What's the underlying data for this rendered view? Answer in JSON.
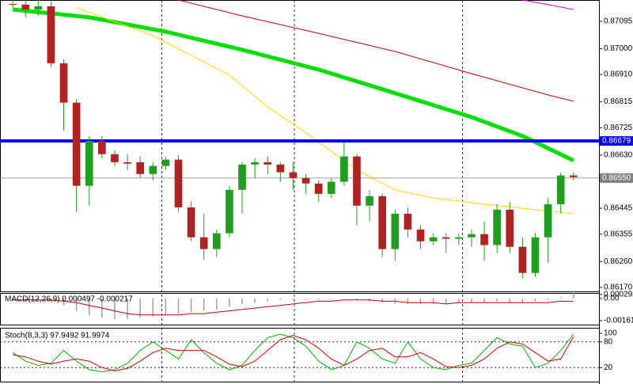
{
  "chart_data": [
    {
      "type": "candlestick",
      "xlim": [
        -1,
        46
      ],
      "xticks": [
        11.7,
        22.1,
        35.3
      ],
      "ylim": [
        0.86156,
        0.87169
      ],
      "yticks": [
        {
          "value": 0.87095,
          "label": "0.87095"
        },
        {
          "value": 0.87,
          "label": "0.87000"
        },
        {
          "value": 0.8691,
          "label": "0.86910"
        },
        {
          "value": 0.86815,
          "label": "0.86815"
        },
        {
          "value": 0.86725,
          "label": "0.86725"
        },
        {
          "value": 0.8663,
          "label": "0.86630"
        },
        {
          "value": 0.86445,
          "label": "0.86445"
        },
        {
          "value": 0.86355,
          "label": "0.86355"
        },
        {
          "value": 0.8626,
          "label": "0.86260"
        },
        {
          "value": 0.8617,
          "label": "0.86170"
        }
      ],
      "levels": [
        {
          "value": 0.86679,
          "label": "0.86679",
          "color": "#0000ff"
        },
        {
          "value": 0.8655,
          "label": "0.86550",
          "color": "#808080"
        }
      ],
      "up_color": "#1f9e1f",
      "down_color": "#b22222",
      "open": [
        0.87155,
        0.87153,
        0.87136,
        0.87147,
        0.86949,
        0.86812,
        0.86523,
        0.86679,
        0.86633,
        0.86605,
        0.86605,
        0.86564,
        0.86592,
        0.86614,
        0.86448,
        0.86344,
        0.86303,
        0.86358,
        0.86509,
        0.86597,
        0.86605,
        0.86597,
        0.8657,
        0.8655,
        0.86531,
        0.86495,
        0.86537,
        0.86625,
        0.86454,
        0.86487,
        0.86303,
        0.86426,
        0.86371,
        0.8633,
        0.86344,
        0.86339,
        0.86344,
        0.86355,
        0.86317,
        0.8644,
        0.86311,
        0.8622,
        0.86344,
        0.86459,
        0.86559
      ],
      "high": [
        0.87169,
        0.87169,
        0.87169,
        0.87164,
        0.86963,
        0.86825,
        0.86696,
        0.86696,
        0.86647,
        0.86633,
        0.86625,
        0.86605,
        0.86625,
        0.8663,
        0.86468,
        0.86426,
        0.86371,
        0.86523,
        0.86605,
        0.86619,
        0.86625,
        0.86605,
        0.86605,
        0.86564,
        0.86542,
        0.8655,
        0.86674,
        0.86633,
        0.86509,
        0.86495,
        0.8644,
        0.86448,
        0.86385,
        0.86358,
        0.86358,
        0.86358,
        0.86371,
        0.86399,
        0.86459,
        0.86468,
        0.86344,
        0.86358,
        0.86481,
        0.8657,
        0.8657
      ],
      "low": [
        0.87142,
        0.87109,
        0.87114,
        0.86935,
        0.86715,
        0.86432,
        0.86454,
        0.86619,
        0.86592,
        0.86578,
        0.8655,
        0.86542,
        0.86578,
        0.86432,
        0.8633,
        0.86267,
        0.86275,
        0.86344,
        0.86426,
        0.8655,
        0.86564,
        0.86537,
        0.86509,
        0.86495,
        0.86468,
        0.86481,
        0.86523,
        0.86385,
        0.86399,
        0.86275,
        0.86262,
        0.86344,
        0.86303,
        0.86317,
        0.86289,
        0.86317,
        0.86311,
        0.86262,
        0.86289,
        0.86289,
        0.86201,
        0.86207,
        0.86256,
        0.86426,
        0.86542
      ],
      "close": [
        0.87153,
        0.87136,
        0.87147,
        0.86949,
        0.86812,
        0.86523,
        0.86679,
        0.86633,
        0.86605,
        0.866,
        0.86564,
        0.86592,
        0.86614,
        0.86448,
        0.86344,
        0.86303,
        0.86358,
        0.86509,
        0.86597,
        0.86605,
        0.86597,
        0.8657,
        0.8655,
        0.86531,
        0.86495,
        0.86537,
        0.86625,
        0.86454,
        0.86487,
        0.86303,
        0.86426,
        0.86371,
        0.8633,
        0.86344,
        0.86339,
        0.86344,
        0.86355,
        0.86317,
        0.8644,
        0.86311,
        0.8622,
        0.86344,
        0.86459,
        0.86559,
        0.86553
      ],
      "series": [
        {
          "color": "#00e000",
          "width": 5,
          "x": [
            0,
            6,
            12,
            18,
            24,
            30,
            36,
            40,
            44
          ],
          "values": [
            0.87136,
            0.87109,
            0.87059,
            0.86996,
            0.86927,
            0.86845,
            0.86762,
            0.86696,
            0.86611
          ]
        },
        {
          "color": "#c00000",
          "width": 1,
          "x": [
            13,
            18,
            24,
            30,
            36,
            42,
            44
          ],
          "values": [
            0.87169,
            0.87114,
            0.87053,
            0.8699,
            0.86913,
            0.86839,
            0.86817
          ]
        },
        {
          "color": "#ffd700",
          "width": 1,
          "x": [
            5,
            11,
            17,
            20,
            23,
            27,
            30,
            33,
            37,
            41,
            44
          ],
          "values": [
            0.87142,
            0.87045,
            0.86908,
            0.86798,
            0.86707,
            0.86578,
            0.86509,
            0.86481,
            0.86459,
            0.8644,
            0.86426
          ]
        },
        {
          "color": "#d000d0",
          "width": 1,
          "x": [
            40,
            42,
            44
          ],
          "values": [
            0.87169,
            0.87153,
            0.87136
          ]
        }
      ]
    },
    {
      "type": "macd",
      "title": "MACD(12,26,9) 0.000497 -0.000217",
      "ylim": [
        -0.0019,
        0.0004
      ],
      "yticks": [
        {
          "value": 0.000293,
          "label": "0.000293"
        },
        {
          "value": 0,
          "label": "0.00"
        },
        {
          "value": -0.001611,
          "label": "-0.001611"
        }
      ],
      "histogram_color": "#a0a0a0",
      "signal_color": "#c00000",
      "values": [
        -0.0001,
        -0.0001,
        -5e-05,
        -0.0002,
        -0.0005,
        -0.0009,
        -0.0012,
        -0.0014,
        -0.0015,
        -0.0015,
        -0.0014,
        -0.0013,
        -0.0012,
        -0.0011,
        -0.001,
        -0.0009,
        -0.0008,
        -0.0006,
        -0.0004,
        -0.0003,
        -0.0002,
        -0.0001,
        -0.0001,
        -0.0001,
        -0.0001,
        -5e-05,
        0,
        -0.0001,
        -0.0002,
        -0.0003,
        -0.0004,
        -0.0004,
        -0.0004,
        -0.0004,
        -0.0004,
        -0.0003,
        -0.0003,
        -0.0003,
        -0.0002,
        -0.0003,
        -0.0003,
        -0.0002,
        -0.0001,
        0.0001,
        0.000497
      ],
      "signal": [
        -0.0001,
        -0.0001,
        -0.0001,
        -0.0001,
        -0.0002,
        -0.0003,
        -0.0005,
        -0.0007,
        -0.0009,
        -0.0011,
        -0.0012,
        -0.0012,
        -0.0012,
        -0.0012,
        -0.0011,
        -0.0011,
        -0.001,
        -0.0009,
        -0.0008,
        -0.0007,
        -0.0006,
        -0.0005,
        -0.0004,
        -0.0003,
        -0.0002,
        -0.0002,
        -0.0001,
        -0.0001,
        -0.0001,
        -0.0002,
        -0.0002,
        -0.0003,
        -0.0003,
        -0.0003,
        -0.0004,
        -0.0003,
        -0.0003,
        -0.0003,
        -0.0003,
        -0.0003,
        -0.0003,
        -0.0003,
        -0.0003,
        -0.0002,
        -0.000217
      ]
    },
    {
      "type": "line",
      "title": "Stoch(8,3,3) 97.9492 91.9974",
      "ylim": [
        -13,
        113
      ],
      "yticks": [
        100,
        80,
        20
      ],
      "levels": [
        80,
        20
      ],
      "series": [
        {
          "color": "#00b000",
          "values": [
            55,
            35,
            25,
            30,
            60,
            35,
            15,
            10,
            15,
            30,
            60,
            80,
            60,
            40,
            85,
            55,
            30,
            15,
            25,
            60,
            90,
            98,
            90,
            70,
            35,
            15,
            25,
            80,
            65,
            40,
            30,
            80,
            40,
            20,
            15,
            25,
            30,
            60,
            90,
            75,
            70,
            20,
            30,
            60,
            97.9492
          ]
        },
        {
          "color": "#d00000",
          "values": [
            50,
            45,
            35,
            28,
            35,
            40,
            35,
            20,
            12,
            18,
            35,
            55,
            65,
            60,
            60,
            60,
            45,
            28,
            22,
            35,
            60,
            85,
            95,
            85,
            65,
            40,
            25,
            40,
            60,
            65,
            45,
            45,
            55,
            40,
            22,
            20,
            25,
            40,
            65,
            80,
            75,
            55,
            35,
            40,
            91.9974
          ]
        }
      ]
    }
  ]
}
